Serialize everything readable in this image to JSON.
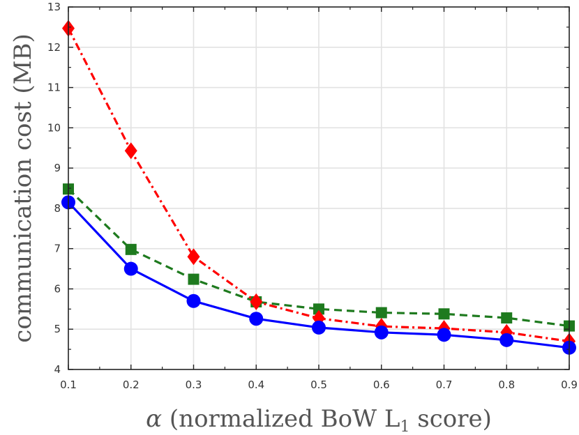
{
  "chart_data": {
    "type": "line",
    "title": "",
    "xlabel_prefix": "α",
    "xlabel_main": " (normalized BoW L",
    "xlabel_sub": "1",
    "xlabel_suffix": " score)",
    "ylabel": "communication cost (MB)",
    "xlim": [
      0.1,
      0.9
    ],
    "ylim": [
      4,
      13
    ],
    "grid": true,
    "x": [
      0.1,
      0.2,
      0.3,
      0.4,
      0.5,
      0.6,
      0.7,
      0.8,
      0.9
    ],
    "x_tick_labels": [
      "0.1",
      "0.2",
      "0.3",
      "0.4",
      "0.5",
      "0.6",
      "0.7",
      "0.8",
      "0.9"
    ],
    "y_ticks": [
      4,
      5,
      6,
      7,
      8,
      9,
      10,
      11,
      12,
      13
    ],
    "y_tick_labels": [
      "4",
      "5",
      "6",
      "7",
      "8",
      "9",
      "10",
      "11",
      "12",
      "13"
    ],
    "series": [
      {
        "name": "red-diamond-dashdot",
        "color": "#ff0000",
        "line_style": "dashdot",
        "marker": "diamond",
        "values": [
          12.47,
          9.43,
          6.8,
          5.68,
          5.27,
          5.07,
          5.02,
          4.92,
          4.7
        ]
      },
      {
        "name": "green-square-dashed",
        "color": "#1e7a1e",
        "line_style": "dashed",
        "marker": "square",
        "values": [
          8.48,
          6.98,
          6.24,
          5.68,
          5.5,
          5.41,
          5.38,
          5.28,
          5.08
        ]
      },
      {
        "name": "blue-circle-solid",
        "color": "#0000ff",
        "line_style": "solid",
        "marker": "circle",
        "values": [
          8.15,
          6.5,
          5.7,
          5.26,
          5.04,
          4.92,
          4.86,
          4.73,
          4.54
        ]
      }
    ]
  }
}
